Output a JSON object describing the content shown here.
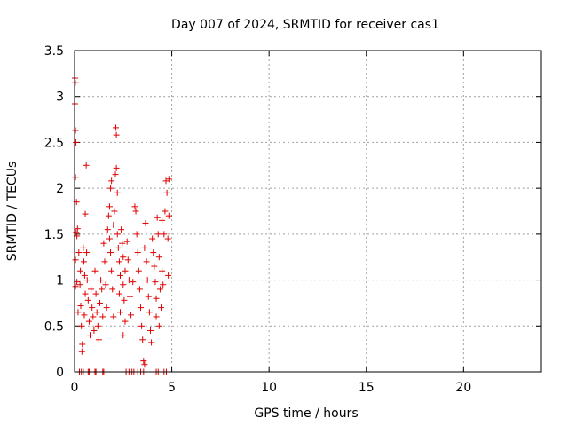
{
  "chart_data": {
    "type": "scatter",
    "title": "Day 007 of 2024, SRMTID for receiver cas1",
    "xlabel": "GPS time / hours",
    "ylabel": "SRMTID / TECUs",
    "xlim": [
      0,
      24
    ],
    "ylim": [
      0,
      3.5
    ],
    "xticks": [
      0,
      5,
      10,
      15,
      20
    ],
    "xtick_labels": [
      "0",
      "5",
      "10",
      "15",
      "20"
    ],
    "yticks": [
      0,
      0.5,
      1,
      1.5,
      2,
      2.5,
      3,
      3.5
    ],
    "ytick_labels": [
      "0",
      "0.5",
      "1",
      "1.5",
      "2",
      "2.5",
      "3",
      "3.5"
    ],
    "grid": true,
    "marker": "+",
    "color": "#e00000",
    "series": [
      {
        "name": "cas1",
        "points": [
          [
            0.02,
            3.2
          ],
          [
            0.04,
            3.15
          ],
          [
            0.02,
            2.92
          ],
          [
            0.05,
            2.63
          ],
          [
            0.07,
            2.5
          ],
          [
            0.05,
            2.12
          ],
          [
            0.1,
            1.85
          ],
          [
            0.08,
            1.52
          ],
          [
            0.12,
            1.48
          ],
          [
            0.15,
            1.56
          ],
          [
            0.05,
            1.22
          ],
          [
            0.12,
            0.98
          ],
          [
            0.05,
            0.93
          ],
          [
            0.18,
            0.65
          ],
          [
            0.22,
            1.3
          ],
          [
            0.3,
            1.1
          ],
          [
            0.28,
            0.95
          ],
          [
            0.32,
            0.72
          ],
          [
            0.35,
            0.5
          ],
          [
            0.4,
            0.3
          ],
          [
            0.38,
            0.22
          ],
          [
            0.45,
            1.35
          ],
          [
            0.48,
            1.2
          ],
          [
            0.52,
            1.05
          ],
          [
            0.55,
            0.85
          ],
          [
            0.5,
            0.62
          ],
          [
            0.6,
            2.25
          ],
          [
            0.55,
            1.72
          ],
          [
            0.62,
            1.3
          ],
          [
            0.65,
            1.0
          ],
          [
            0.7,
            0.78
          ],
          [
            0.75,
            0.55
          ],
          [
            0.8,
            0.4
          ],
          [
            0.85,
            0.9
          ],
          [
            0.9,
            0.7
          ],
          [
            0.95,
            0.6
          ],
          [
            1.0,
            0.45
          ],
          [
            1.05,
            1.1
          ],
          [
            1.1,
            0.85
          ],
          [
            1.15,
            0.65
          ],
          [
            1.2,
            0.5
          ],
          [
            1.25,
            0.35
          ],
          [
            1.3,
            0.75
          ],
          [
            1.35,
            1.0
          ],
          [
            1.4,
            0.9
          ],
          [
            1.45,
            0.6
          ],
          [
            1.5,
            1.4
          ],
          [
            1.55,
            1.2
          ],
          [
            1.6,
            0.95
          ],
          [
            1.65,
            0.7
          ],
          [
            1.7,
            1.55
          ],
          [
            1.75,
            1.7
          ],
          [
            1.8,
            1.8
          ],
          [
            1.85,
            2.0
          ],
          [
            1.9,
            2.08
          ],
          [
            1.8,
            1.45
          ],
          [
            1.85,
            1.3
          ],
          [
            1.9,
            1.1
          ],
          [
            1.95,
            0.9
          ],
          [
            2.0,
            0.6
          ],
          [
            2.0,
            1.6
          ],
          [
            2.05,
            1.75
          ],
          [
            2.1,
            2.15
          ],
          [
            2.15,
            2.22
          ],
          [
            2.12,
            2.66
          ],
          [
            2.15,
            2.58
          ],
          [
            2.2,
            1.95
          ],
          [
            2.2,
            1.5
          ],
          [
            2.25,
            1.35
          ],
          [
            2.3,
            1.2
          ],
          [
            2.35,
            1.05
          ],
          [
            2.3,
            0.85
          ],
          [
            2.35,
            0.65
          ],
          [
            2.4,
            1.55
          ],
          [
            2.45,
            1.4
          ],
          [
            2.5,
            1.25
          ],
          [
            2.5,
            0.95
          ],
          [
            2.55,
            0.78
          ],
          [
            2.6,
            0.55
          ],
          [
            2.5,
            0.4
          ],
          [
            2.6,
            1.1
          ],
          [
            2.7,
            1.42
          ],
          [
            2.75,
            1.22
          ],
          [
            2.8,
            1.0
          ],
          [
            2.85,
            0.82
          ],
          [
            2.9,
            0.62
          ],
          [
            3.0,
            0.98
          ],
          [
            3.1,
            1.8
          ],
          [
            3.15,
            1.75
          ],
          [
            3.2,
            1.5
          ],
          [
            3.25,
            1.3
          ],
          [
            3.3,
            1.1
          ],
          [
            3.35,
            0.9
          ],
          [
            3.4,
            0.7
          ],
          [
            3.45,
            0.5
          ],
          [
            3.5,
            0.35
          ],
          [
            3.55,
            0.12
          ],
          [
            3.6,
            0.08
          ],
          [
            3.6,
            1.35
          ],
          [
            3.65,
            1.62
          ],
          [
            3.7,
            1.2
          ],
          [
            3.75,
            1.0
          ],
          [
            3.8,
            0.82
          ],
          [
            3.85,
            0.65
          ],
          [
            3.9,
            0.45
          ],
          [
            3.95,
            0.32
          ],
          [
            4.0,
            1.45
          ],
          [
            4.05,
            1.3
          ],
          [
            4.1,
            1.15
          ],
          [
            4.15,
            0.98
          ],
          [
            4.2,
            0.8
          ],
          [
            4.2,
            0.6
          ],
          [
            4.25,
            1.68
          ],
          [
            4.3,
            1.5
          ],
          [
            4.35,
            1.25
          ],
          [
            4.35,
            0.5
          ],
          [
            4.4,
            0.9
          ],
          [
            4.45,
            0.7
          ],
          [
            4.5,
            1.1
          ],
          [
            4.5,
            1.65
          ],
          [
            4.55,
            0.95
          ],
          [
            4.6,
            1.5
          ],
          [
            4.65,
            1.75
          ],
          [
            4.7,
            2.08
          ],
          [
            4.75,
            1.95
          ],
          [
            4.8,
            1.45
          ],
          [
            4.82,
            1.05
          ],
          [
            4.85,
            2.1
          ],
          [
            4.85,
            1.7
          ],
          [
            0.25,
            0.0
          ],
          [
            0.35,
            0.0
          ],
          [
            0.45,
            0.0
          ],
          [
            0.7,
            0.0
          ],
          [
            0.75,
            0.0
          ],
          [
            1.05,
            0.0
          ],
          [
            1.1,
            0.0
          ],
          [
            1.45,
            0.0
          ],
          [
            1.5,
            0.0
          ],
          [
            2.65,
            0.0
          ],
          [
            2.8,
            0.0
          ],
          [
            2.95,
            0.0
          ],
          [
            3.05,
            0.0
          ],
          [
            3.25,
            0.0
          ],
          [
            3.4,
            0.0
          ],
          [
            3.55,
            0.0
          ],
          [
            4.2,
            0.0
          ],
          [
            4.3,
            0.0
          ],
          [
            4.6,
            0.0
          ],
          [
            4.72,
            0.0
          ]
        ]
      }
    ]
  }
}
